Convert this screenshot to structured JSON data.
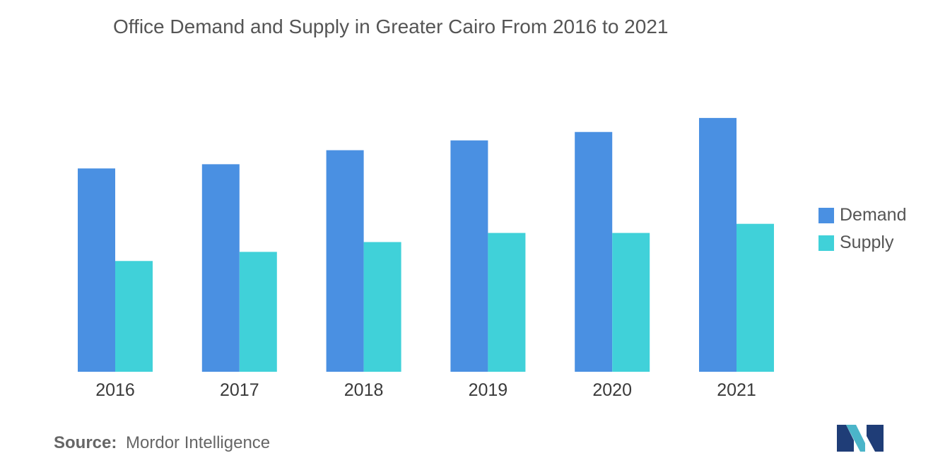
{
  "chart_data": {
    "type": "bar",
    "title": "Office Demand and Supply in Greater Cairo From 2016 to 2021",
    "categories": [
      "2016",
      "2017",
      "2018",
      "2019",
      "2020",
      "2021"
    ],
    "series": [
      {
        "name": "Demand",
        "color": "#4a90e2",
        "values": [
          2.9,
          2.96,
          3.16,
          3.3,
          3.42,
          3.62
        ]
      },
      {
        "name": "Supply",
        "color": "#40d1d9",
        "values": [
          1.58,
          1.71,
          1.85,
          1.98,
          1.98,
          2.11
        ]
      }
    ],
    "xlabel": "",
    "ylabel": "",
    "ylim": [
      0,
      5
    ],
    "grid": false,
    "legend_position": "right"
  },
  "source": {
    "label": "Source:",
    "text": "Mordor Intelligence"
  },
  "logo": {
    "icon": "mordor-intelligence-logo-icon",
    "colors": [
      "#1f3d77",
      "#4bb5c9"
    ]
  }
}
